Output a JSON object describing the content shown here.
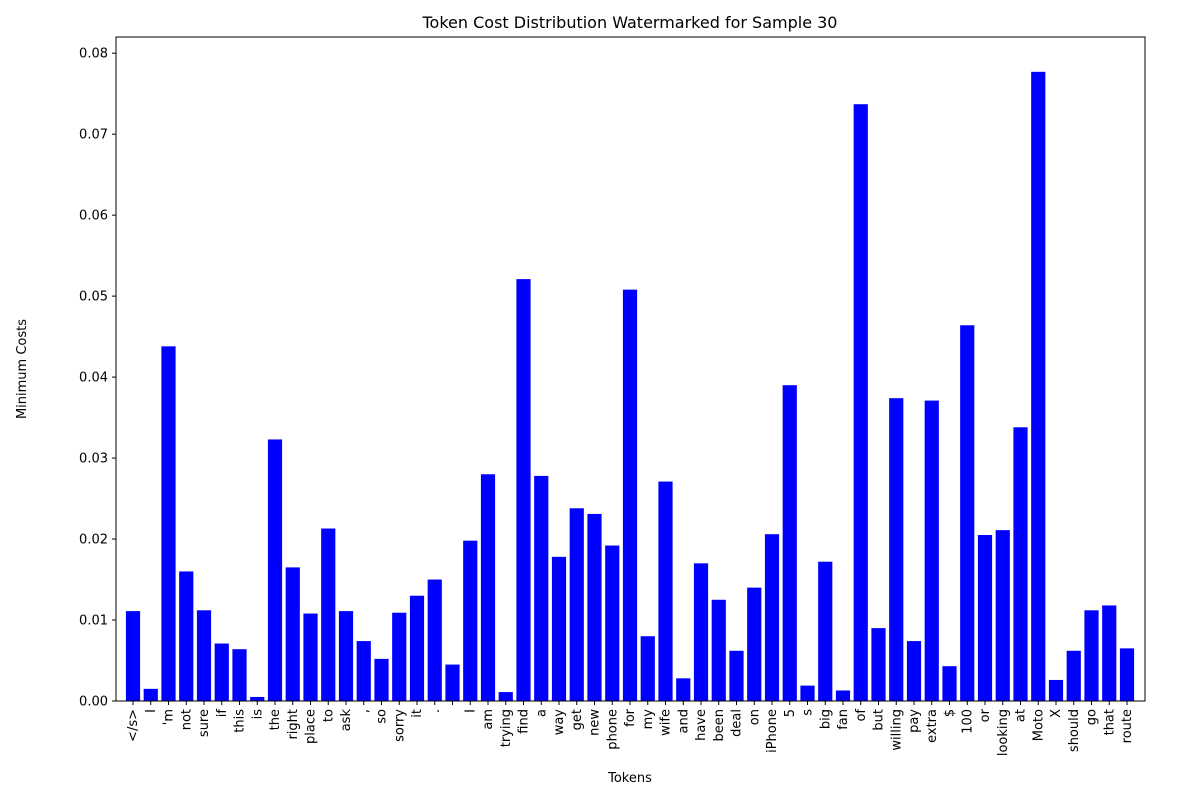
{
  "chart_data": {
    "type": "bar",
    "title": "Token Cost Distribution Watermarked for Sample 30",
    "xlabel": "Tokens",
    "ylabel": "Minimum Costs",
    "ylim": [
      0,
      0.082
    ],
    "yticks": [
      "0.00",
      "0.01",
      "0.02",
      "0.03",
      "0.04",
      "0.05",
      "0.06",
      "0.07",
      "0.08"
    ],
    "bar_color": "#0000ff",
    "grid": false,
    "categories": [
      "</s>",
      "I",
      "'m",
      "not",
      "sure",
      "if",
      "this",
      "is",
      "the",
      "right",
      "place",
      "to",
      "ask",
      ",",
      "so",
      "sorry",
      "it",
      ".",
      "",
      "I",
      "am",
      "trying",
      "find",
      "a",
      "way",
      "get",
      "new",
      "phone",
      "for",
      "my",
      "wife",
      "and",
      "have",
      "been",
      "deal",
      "on",
      "iPhone",
      "5",
      "s",
      "big",
      "fan",
      "of",
      "but",
      "willing",
      "pay",
      "extra",
      "$",
      "100",
      "or",
      "looking",
      "at",
      "Moto",
      "X",
      "should",
      "go",
      "that",
      "route"
    ],
    "values": [
      0.0111,
      0.0015,
      0.0438,
      0.016,
      0.0112,
      0.0071,
      0.0064,
      0.0005,
      0.0323,
      0.0165,
      0.0108,
      0.0213,
      0.0111,
      0.0074,
      0.0052,
      0.0109,
      0.013,
      0.015,
      0.0045,
      0.0198,
      0.028,
      0.0011,
      0.0521,
      0.0278,
      0.0178,
      0.0238,
      0.0231,
      0.0192,
      0.0508,
      0.008,
      0.0271,
      0.0028,
      0.017,
      0.0125,
      0.0062,
      0.014,
      0.0206,
      0.039,
      0.0019,
      0.0172,
      0.0013,
      0.0737,
      0.009,
      0.0374,
      0.0074,
      0.0371,
      0.0043,
      0.0464,
      0.0205,
      0.0211,
      0.0338,
      0.0777,
      0.0026,
      0.0062,
      0.0112,
      0.0118,
      0.0065
    ]
  }
}
